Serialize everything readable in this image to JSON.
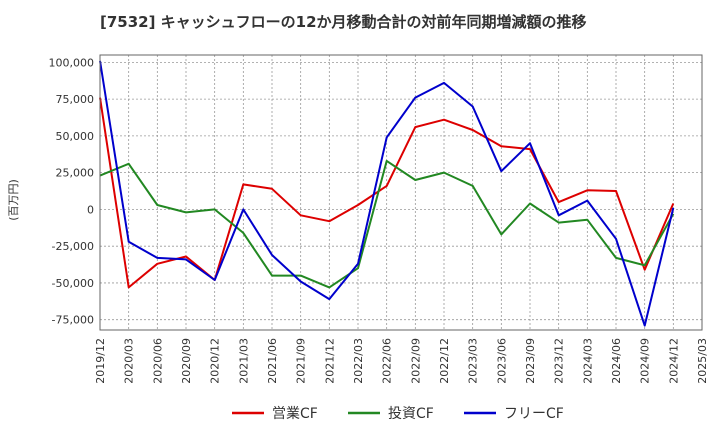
{
  "chart_data": {
    "type": "line",
    "title": "[7532]  キャッシュフローの12か月移動合計の対前年同期増減額の推移",
    "ylabel": "(百万円)",
    "xlabel": "",
    "ylim": [
      -82000,
      105000
    ],
    "y_ticks": [
      100000,
      75000,
      50000,
      25000,
      0,
      -25000,
      -50000,
      -75000
    ],
    "y_tick_labels": [
      "100,000",
      "75,000",
      "50,000",
      "25,000",
      "0",
      "-25,000",
      "-50,000",
      "-75,000"
    ],
    "x_tick_labels": [
      "2019/12",
      "2020/03",
      "2020/06",
      "2020/09",
      "2020/12",
      "2021/03",
      "2021/06",
      "2021/09",
      "2021/12",
      "2022/03",
      "2022/06",
      "2022/09",
      "2022/12",
      "2023/03",
      "2023/06",
      "2023/09",
      "2023/12",
      "2024/03",
      "2024/06",
      "2024/09",
      "2024/12",
      "2025/03"
    ],
    "grid": true,
    "legend_position": "bottom",
    "series": [
      {
        "name": "営業CF",
        "color": "#dd0000",
        "values": [
          76000,
          -53000,
          -37000,
          -32000,
          -48000,
          17000,
          14000,
          -4000,
          -8000,
          3000,
          16000,
          56000,
          61000,
          54000,
          43000,
          41000,
          5000,
          13000,
          12500,
          -41000,
          4000
        ]
      },
      {
        "name": "投資CF",
        "color": "#228822",
        "values": [
          23000,
          31000,
          3000,
          -2000,
          0,
          -16000,
          -45000,
          -45000,
          -53000,
          -40000,
          33000,
          20000,
          25000,
          16000,
          -17000,
          4000,
          -9000,
          -7000,
          -33000,
          -38000,
          -3000
        ]
      },
      {
        "name": "フリーCF",
        "color": "#0000cc",
        "values": [
          101000,
          -22000,
          -33000,
          -34000,
          -48000,
          0,
          -31000,
          -49000,
          -61000,
          -37000,
          49000,
          76000,
          86000,
          70000,
          26000,
          45000,
          -4000,
          6000,
          -20000,
          -79000,
          1000
        ]
      }
    ]
  }
}
